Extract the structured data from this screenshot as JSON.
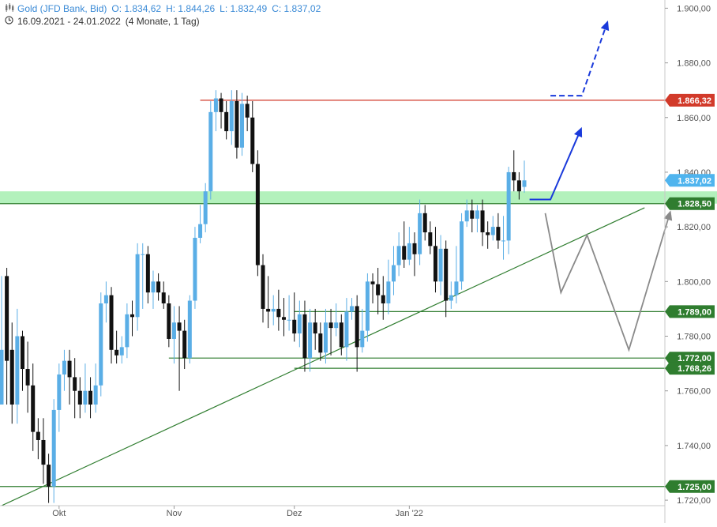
{
  "header": {
    "instrument": "Gold (JFD Bank, Bid)",
    "open": "O: 1.834,62",
    "high": "H: 1.844,26",
    "low": "L: 1.832,49",
    "close": "C: 1.837,02",
    "range": "16.09.2021 - 24.01.2022",
    "period": "(4 Monate, 1 Tag)",
    "instrument_icon": "candles-icon",
    "period_icon": "clock-icon"
  },
  "colors": {
    "bull": "#5aaee6",
    "bear": "#111111",
    "support": "#2f7d2f",
    "resistance": "#d23a2a",
    "zone": "#a6efb0",
    "projection_blue": "#1a3adb",
    "projection_grey": "#8a8a8a",
    "price_badge": "#4fb4ee",
    "axis_text": "#555555"
  },
  "chart_data": {
    "type": "candlestick",
    "title": "Gold (JFD Bank, Bid)",
    "xlabel": "",
    "ylabel": "",
    "ylim": [
      1718,
      1903
    ],
    "y_ticks": [
      "1.720,00",
      "1.740,00",
      "1.760,00",
      "1.780,00",
      "1.800,00",
      "1.820,00",
      "1.840,00",
      "1.860,00",
      "1.880,00",
      "1.900,00"
    ],
    "y_tick_values": [
      1720,
      1740,
      1760,
      1780,
      1800,
      1820,
      1840,
      1860,
      1880,
      1900
    ],
    "x_ticks": [
      {
        "label": "Okt",
        "bar": 11
      },
      {
        "label": "Nov",
        "bar": 33
      },
      {
        "label": "Dez",
        "bar": 56
      },
      {
        "label": "Jan '22",
        "bar": 78
      }
    ],
    "grid": false,
    "current_price": {
      "label": "1.837,02",
      "value": 1837.02
    },
    "levels": [
      {
        "label": "1.866,32",
        "value": 1866.32,
        "kind": "resistance",
        "from_bar": 38
      },
      {
        "label": "1.828,50",
        "value": 1828.5,
        "kind": "support"
      },
      {
        "label": "1.789,00",
        "value": 1789.0,
        "kind": "support",
        "from_bar": 56
      },
      {
        "label": "1.772,00",
        "value": 1772.0,
        "kind": "support",
        "from_bar": 32
      },
      {
        "label": "1.768,26",
        "value": 1768.26,
        "kind": "support",
        "from_bar": 56
      },
      {
        "label": "1.725,00",
        "value": 1725.0,
        "kind": "support"
      }
    ],
    "zone": [
      1828.5,
      1833
    ],
    "trendline": {
      "from": [
        0,
        1718
      ],
      "to": [
        123,
        1827
      ]
    },
    "ohlc": [
      [
        1755,
        1775,
        1755,
        1802
      ],
      [
        1802,
        1771,
        1755,
        1805
      ],
      [
        1775,
        1755,
        1748,
        1785
      ],
      [
        1755,
        1780,
        1748,
        1790
      ],
      [
        1780,
        1768,
        1760,
        1782
      ],
      [
        1768,
        1762,
        1752,
        1778
      ],
      [
        1762,
        1745,
        1738,
        1770
      ],
      [
        1745,
        1742,
        1735,
        1750
      ],
      [
        1742,
        1733,
        1726,
        1750
      ],
      [
        1733,
        1725,
        1719,
        1737
      ],
      [
        1725,
        1753,
        1719,
        1757
      ],
      [
        1753,
        1766,
        1745,
        1770
      ],
      [
        1766,
        1771,
        1760,
        1775
      ],
      [
        1771,
        1765,
        1755,
        1775
      ],
      [
        1765,
        1760,
        1750,
        1772
      ],
      [
        1760,
        1755,
        1750,
        1765
      ],
      [
        1755,
        1760,
        1752,
        1770
      ],
      [
        1760,
        1755,
        1750,
        1765
      ],
      [
        1755,
        1762,
        1752,
        1770
      ],
      [
        1762,
        1792,
        1758,
        1796
      ],
      [
        1792,
        1795,
        1785,
        1800
      ],
      [
        1795,
        1775,
        1770,
        1798
      ],
      [
        1775,
        1773,
        1770,
        1782
      ],
      [
        1773,
        1776,
        1770,
        1780
      ],
      [
        1776,
        1788,
        1772,
        1792
      ],
      [
        1788,
        1787,
        1780,
        1793
      ],
      [
        1787,
        1810,
        1782,
        1814
      ],
      [
        1810,
        1810,
        1790,
        1814
      ],
      [
        1810,
        1796,
        1792,
        1813
      ],
      [
        1796,
        1800,
        1790,
        1804
      ],
      [
        1800,
        1796,
        1793,
        1803
      ],
      [
        1796,
        1792,
        1790,
        1800
      ],
      [
        1792,
        1779,
        1776,
        1795
      ],
      [
        1779,
        1785,
        1770,
        1791
      ],
      [
        1785,
        1782,
        1760,
        1791
      ],
      [
        1782,
        1772,
        1768,
        1786
      ],
      [
        1772,
        1793,
        1770,
        1795
      ],
      [
        1793,
        1816,
        1790,
        1820
      ],
      [
        1816,
        1821,
        1814,
        1828
      ],
      [
        1821,
        1833,
        1818,
        1836
      ],
      [
        1833,
        1862,
        1830,
        1866
      ],
      [
        1862,
        1867,
        1855,
        1870
      ],
      [
        1867,
        1862,
        1856,
        1869
      ],
      [
        1862,
        1855,
        1852,
        1866
      ],
      [
        1855,
        1866,
        1850,
        1870
      ],
      [
        1866,
        1849,
        1845,
        1870
      ],
      [
        1849,
        1865,
        1846,
        1869
      ],
      [
        1865,
        1860,
        1855,
        1868
      ],
      [
        1860,
        1843,
        1840,
        1866
      ],
      [
        1843,
        1806,
        1802,
        1848
      ],
      [
        1806,
        1790,
        1785,
        1810
      ],
      [
        1790,
        1789,
        1783,
        1802
      ],
      [
        1789,
        1790,
        1784,
        1795
      ],
      [
        1790,
        1787,
        1782,
        1797
      ],
      [
        1787,
        1786,
        1780,
        1794
      ],
      [
        1786,
        1786,
        1782,
        1795
      ],
      [
        1786,
        1781,
        1778,
        1796
      ],
      [
        1781,
        1788,
        1776,
        1793
      ],
      [
        1788,
        1772,
        1767,
        1793
      ],
      [
        1772,
        1785,
        1767,
        1790
      ],
      [
        1785,
        1781,
        1775,
        1790
      ],
      [
        1781,
        1774,
        1771,
        1785
      ],
      [
        1774,
        1785,
        1770,
        1790
      ],
      [
        1785,
        1783,
        1773,
        1790
      ],
      [
        1783,
        1785,
        1780,
        1792
      ],
      [
        1785,
        1776,
        1773,
        1788
      ],
      [
        1776,
        1789,
        1771,
        1794
      ],
      [
        1789,
        1791,
        1786,
        1794
      ],
      [
        1791,
        1776,
        1767,
        1795
      ],
      [
        1776,
        1782,
        1774,
        1790
      ],
      [
        1782,
        1800,
        1778,
        1803
      ],
      [
        1800,
        1799,
        1792,
        1803
      ],
      [
        1799,
        1795,
        1788,
        1805
      ],
      [
        1795,
        1792,
        1786,
        1802
      ],
      [
        1792,
        1800,
        1788,
        1808
      ],
      [
        1800,
        1806,
        1795,
        1813
      ],
      [
        1806,
        1813,
        1802,
        1818
      ],
      [
        1813,
        1808,
        1805,
        1822
      ],
      [
        1808,
        1814,
        1806,
        1820
      ],
      [
        1814,
        1810,
        1802,
        1818
      ],
      [
        1810,
        1825,
        1806,
        1830
      ],
      [
        1825,
        1818,
        1815,
        1828
      ],
      [
        1818,
        1813,
        1810,
        1822
      ],
      [
        1813,
        1800,
        1796,
        1820
      ],
      [
        1800,
        1812,
        1795,
        1817
      ],
      [
        1812,
        1793,
        1787,
        1815
      ],
      [
        1793,
        1795,
        1790,
        1800
      ],
      [
        1795,
        1800,
        1792,
        1813
      ],
      [
        1800,
        1822,
        1797,
        1825
      ],
      [
        1822,
        1826,
        1820,
        1830
      ],
      [
        1826,
        1823,
        1818,
        1830
      ],
      [
        1823,
        1826,
        1818,
        1828
      ],
      [
        1826,
        1818,
        1813,
        1830
      ],
      [
        1818,
        1817,
        1812,
        1822
      ],
      [
        1817,
        1820,
        1815,
        1824
      ],
      [
        1820,
        1815,
        1812,
        1825
      ],
      [
        1815,
        1815,
        1808,
        1824
      ],
      [
        1815,
        1840,
        1810,
        1842
      ],
      [
        1840,
        1837,
        1833,
        1848
      ],
      [
        1837,
        1833,
        1830,
        1840
      ],
      [
        1834.62,
        1837.02,
        1832.49,
        1844.26
      ]
    ],
    "projections": [
      {
        "name": "blue-solid",
        "style": "solid",
        "color": "blue",
        "points": [
          [
            101,
            1830
          ],
          [
            105,
            1830
          ],
          [
            111,
            1856.5
          ]
        ],
        "arrow": true
      },
      {
        "name": "blue-dashed",
        "style": "dashed",
        "color": "blue",
        "points": [
          [
            105,
            1868
          ],
          [
            111,
            1868
          ],
          [
            116,
            1895.5
          ]
        ],
        "arrow": true
      },
      {
        "name": "grey-scenario",
        "style": "solid",
        "color": "grey",
        "points": [
          [
            104,
            1825
          ],
          [
            107,
            1796
          ],
          [
            112,
            1817
          ],
          [
            120,
            1775
          ],
          [
            128,
            1826
          ]
        ],
        "arrow": true
      }
    ]
  }
}
